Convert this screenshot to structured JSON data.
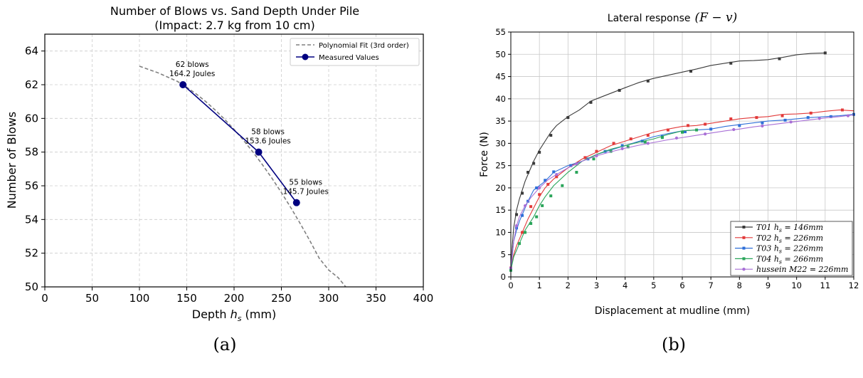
{
  "chart_data": [
    {
      "type": "line",
      "panel_label": "(a)",
      "title": "Number of Blows vs. Sand Depth Under Pile",
      "subtitle": "(Impact: 2.7 kg from 10 cm)",
      "xlabel": "Depth h_s (mm)",
      "xlabel_parts": [
        "Depth ",
        "h",
        "s",
        " (mm)"
      ],
      "ylabel": "Number of Blows",
      "xlim": [
        0,
        400
      ],
      "ylim": [
        50,
        65
      ],
      "xticks": [
        0,
        50,
        100,
        150,
        200,
        250,
        300,
        350,
        400
      ],
      "yticks": [
        50,
        52,
        54,
        56,
        58,
        60,
        62,
        64
      ],
      "grid": true,
      "legend_position": "top-right",
      "series": [
        {
          "name": "Polynomial Fit (3rd order)",
          "style": "dashed",
          "color": "#808080",
          "x": [
            100,
            110,
            120,
            130,
            140,
            150,
            160,
            170,
            180,
            190,
            200,
            210,
            220,
            230,
            240,
            250,
            260,
            270,
            280,
            290,
            300,
            310,
            318
          ],
          "y": [
            63.1,
            62.9,
            62.7,
            62.45,
            62.2,
            61.85,
            61.45,
            61.0,
            60.5,
            59.95,
            59.35,
            58.7,
            58.0,
            57.25,
            56.45,
            55.6,
            54.7,
            53.75,
            52.75,
            51.7,
            51.0,
            50.55,
            50.0
          ]
        },
        {
          "name": "Measured Values",
          "style": "solid-marker",
          "color": "#000080",
          "x": [
            146,
            226,
            266
          ],
          "y": [
            62,
            58,
            55
          ]
        }
      ],
      "annotations": [
        {
          "line1": "62 blows",
          "line2": "164.2 Joules",
          "x": 146,
          "y": 62
        },
        {
          "line1": "58 blows",
          "line2": "153.6 Joules",
          "x": 226,
          "y": 58
        },
        {
          "line1": "55 blows",
          "line2": "145.7 Joules",
          "x": 266,
          "y": 55
        }
      ]
    },
    {
      "type": "line",
      "panel_label": "(b)",
      "title": "Lateral response",
      "title_math": "(F − v)",
      "xlabel": "Displacement at mudline (mm)",
      "ylabel": "Force (N)",
      "xlim": [
        0,
        12
      ],
      "ylim": [
        0,
        55
      ],
      "xticks": [
        0,
        1,
        2,
        3,
        4,
        5,
        6,
        7,
        8,
        9,
        10,
        11,
        12
      ],
      "yticks": [
        0,
        5,
        10,
        15,
        20,
        25,
        30,
        35,
        40,
        45,
        50,
        55
      ],
      "grid": true,
      "legend_position": "bottom-right",
      "series": [
        {
          "name": "T01 h_s = 146mm",
          "legend_parts": [
            "T01 h",
            "s",
            " = 146mm"
          ],
          "color": "#3a3a3a",
          "x": [
            0,
            0.05,
            0.1,
            0.2,
            0.3,
            0.4,
            0.5,
            0.6,
            0.7,
            0.8,
            1.0,
            1.2,
            1.4,
            1.6,
            1.8,
            2.0,
            2.4,
            2.8,
            3.2,
            3.6,
            4.0,
            4.5,
            5.0,
            5.5,
            6.0,
            6.5,
            7.0,
            7.5,
            8.0,
            8.5,
            9.0,
            9.5,
            10.0,
            10.5,
            11.0
          ],
          "y": [
            2,
            7,
            11,
            15,
            17.5,
            19.5,
            21.5,
            23,
            24.5,
            26,
            28.5,
            30.5,
            32.5,
            34,
            35,
            36,
            37.5,
            39.5,
            40.5,
            41.5,
            42.5,
            43.7,
            44.6,
            45.3,
            46,
            46.7,
            47.5,
            48,
            48.5,
            48.6,
            48.8,
            49.3,
            49.9,
            50.2,
            50.3
          ],
          "marker_x": [
            0,
            0.2,
            0.4,
            0.6,
            0.8,
            1.0,
            1.4,
            2.0,
            2.8,
            3.8,
            4.8,
            6.3,
            7.7,
            9.4,
            11.0
          ],
          "marker_y": [
            2,
            14,
            18.8,
            23.5,
            25.5,
            28,
            31.8,
            35.8,
            39.2,
            41.9,
            44,
            46.2,
            48,
            49,
            50.3
          ]
        },
        {
          "name": "T02 h_s = 226mm",
          "legend_parts": [
            "T02 h",
            "s",
            " = 226mm"
          ],
          "color": "#e23a3a",
          "x": [
            0,
            0.1,
            0.2,
            0.3,
            0.4,
            0.5,
            0.6,
            0.8,
            1.0,
            1.2,
            1.5,
            2.0,
            2.5,
            3.0,
            3.5,
            4.0,
            4.5,
            5.0,
            5.5,
            6.0,
            6.5,
            7.0,
            7.5,
            8.0,
            8.5,
            9.0,
            9.5,
            10.0,
            10.5,
            11.0,
            11.5,
            12.0
          ],
          "y": [
            2,
            5,
            7,
            8.5,
            10,
            11.5,
            13,
            15.5,
            18,
            20,
            22,
            24.5,
            26.5,
            28,
            29.5,
            30.5,
            31.5,
            32.5,
            33.2,
            33.8,
            34,
            34.5,
            35,
            35.5,
            35.8,
            36,
            36.5,
            36.6,
            36.8,
            37.2,
            37.5,
            37.3
          ],
          "marker_x": [
            0,
            0.4,
            0.7,
            1.0,
            1.3,
            1.6,
            2.1,
            2.6,
            3.0,
            3.6,
            4.2,
            4.8,
            5.5,
            6.2,
            6.8,
            7.7,
            8.6,
            9.5,
            10.5,
            11.6
          ],
          "marker_y": [
            2,
            10,
            15.8,
            18.5,
            20.8,
            22.5,
            25,
            26.8,
            28.2,
            30,
            31,
            31.8,
            33,
            34,
            34.3,
            35.5,
            35.8,
            36.2,
            36.8,
            37.5
          ]
        },
        {
          "name": "T03 h_s = 226mm",
          "legend_parts": [
            "T03 h",
            "s",
            " = 226mm"
          ],
          "color": "#2e6fd8",
          "x": [
            0,
            0.1,
            0.2,
            0.3,
            0.4,
            0.5,
            0.6,
            0.8,
            1.0,
            1.2,
            1.5,
            2.0,
            2.5,
            3.0,
            3.5,
            4.0,
            4.5,
            5.0,
            5.5,
            6.0,
            6.5,
            7.0,
            7.5,
            8.0,
            8.5,
            9.0,
            9.5,
            10.0,
            10.5,
            11.0,
            11.5,
            12.0
          ],
          "y": [
            1.5,
            8,
            10.5,
            12.5,
            14,
            15.5,
            17,
            19.5,
            20.5,
            21.5,
            23.5,
            25,
            26,
            27.5,
            28.5,
            29.5,
            30.5,
            31.5,
            32.2,
            32.8,
            33,
            33.2,
            33.8,
            34.2,
            34.6,
            35,
            35.2,
            35.5,
            35.8,
            36,
            36.2,
            36.5
          ],
          "marker_x": [
            0,
            0.2,
            0.4,
            0.6,
            0.9,
            1.2,
            1.5,
            2.1,
            2.7,
            3.3,
            3.9,
            4.6,
            5.3,
            6.1,
            7.0,
            8.0,
            8.8,
            9.6,
            10.4,
            11.2,
            12.0
          ],
          "marker_y": [
            1.5,
            11,
            13.8,
            17,
            20,
            21.7,
            23.6,
            25,
            26.5,
            28.2,
            29.5,
            30.5,
            31.5,
            32.6,
            33.2,
            34,
            34.6,
            35.2,
            35.8,
            36,
            36.5
          ]
        },
        {
          "name": "T04 h_s = 266mm",
          "legend_parts": [
            "T04 h",
            "s",
            " = 266mm"
          ],
          "color": "#2aa55a",
          "x": [
            0,
            0.1,
            0.2,
            0.3,
            0.4,
            0.5,
            0.6,
            0.8,
            1.0,
            1.2,
            1.5,
            2.0,
            2.5,
            3.0,
            3.5,
            4.0,
            4.5,
            5.0,
            5.5,
            6.0,
            6.5
          ],
          "y": [
            1.5,
            4.5,
            6,
            7.5,
            9,
            10.5,
            11.5,
            13.5,
            16,
            18,
            20.5,
            23.5,
            26,
            27.5,
            28.7,
            29.5,
            30.3,
            31,
            32,
            32.8,
            33
          ],
          "marker_x": [
            0,
            0.3,
            0.5,
            0.7,
            0.9,
            1.1,
            1.4,
            1.8,
            2.3,
            2.9,
            3.5,
            4.1,
            4.7,
            5.3,
            6.0,
            6.5
          ],
          "marker_y": [
            1.5,
            7.5,
            10,
            12,
            13.5,
            16,
            18.2,
            20.5,
            23.5,
            26.5,
            28.2,
            29.2,
            30.3,
            31.3,
            32.5,
            33
          ]
        },
        {
          "name": "hussein M22 = 226mm",
          "legend_parts": [
            "hussein M22 = 226mm"
          ],
          "color": "#a86fd6",
          "x": [
            0,
            0.1,
            0.2,
            0.3,
            0.5,
            0.7,
            1.0,
            1.3,
            1.6,
            2.0,
            2.5,
            3.0,
            3.5,
            4.0,
            4.5,
            5.0,
            5.5,
            6.0,
            6.5,
            7.0,
            7.5,
            8.0,
            8.5,
            9.0,
            9.5,
            10.0,
            10.5,
            11.0,
            11.5,
            12.0
          ],
          "y": [
            2,
            8,
            11.5,
            13.5,
            16,
            17.8,
            20,
            21.8,
            23,
            24.5,
            26,
            27.2,
            28.1,
            28.9,
            29.6,
            30.2,
            30.8,
            31.3,
            31.8,
            32.3,
            32.8,
            33.2,
            33.7,
            34.1,
            34.5,
            34.9,
            35.3,
            35.7,
            36.0,
            36.4
          ],
          "marker_x": [
            0,
            0.2,
            0.5,
            1.0,
            1.6,
            2.3,
            3.0,
            3.9,
            4.8,
            5.8,
            6.8,
            7.8,
            8.8,
            9.8,
            10.8,
            11.8
          ],
          "marker_y": [
            2,
            11.5,
            16,
            20,
            23,
            25.4,
            27.2,
            28.8,
            30,
            31.2,
            32.1,
            33.1,
            33.9,
            34.8,
            35.6,
            36.2
          ]
        }
      ]
    }
  ]
}
